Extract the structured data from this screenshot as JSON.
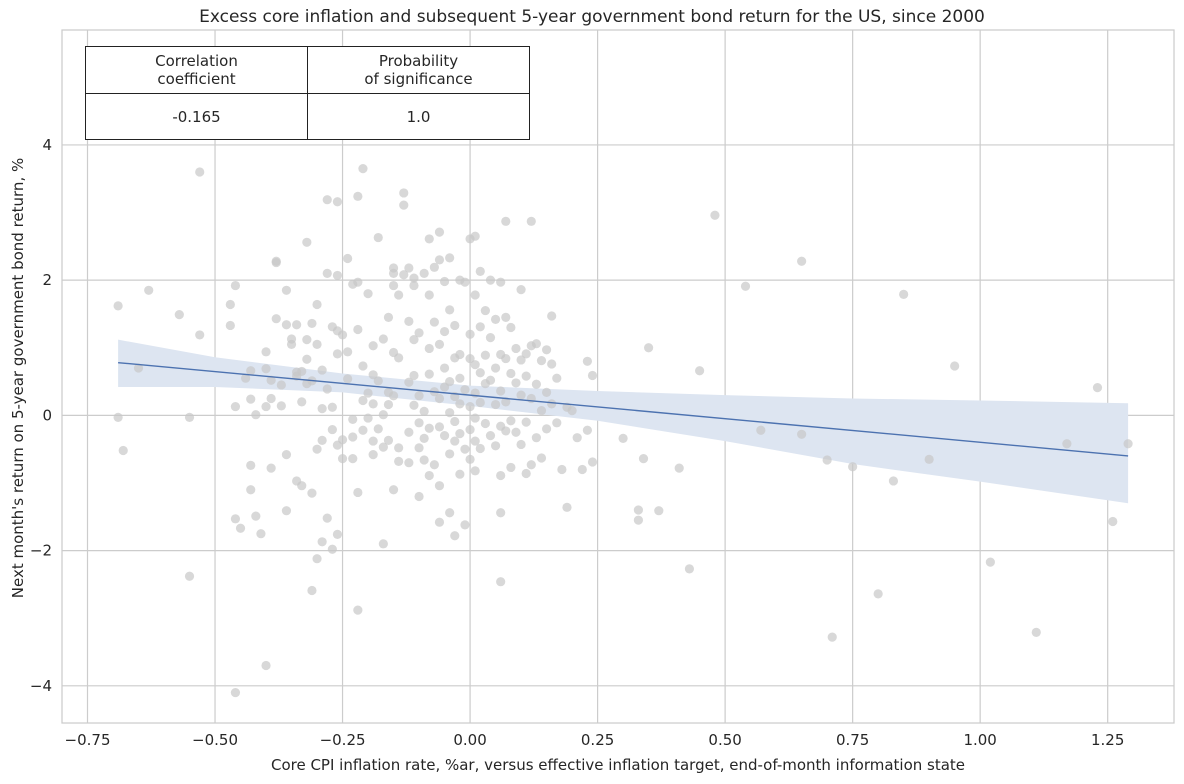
{
  "chart_data": {
    "type": "scatter",
    "title": "Excess core inflation and subsequent 5-year government bond return for the US, since 2000",
    "xlabel": "Core CPI inflation rate, %ar, versus effective inflation target, end-of-month information state",
    "ylabel": "Next month's return on 5-year government bond return, %",
    "xlim": [
      -0.8,
      1.38
    ],
    "ylim": [
      -4.55,
      5.7
    ],
    "xticks": [
      -0.75,
      -0.5,
      -0.25,
      0.0,
      0.25,
      0.5,
      0.75,
      1.0,
      1.25
    ],
    "xtick_labels": [
      "−0.75",
      "−0.50",
      "−0.25",
      "0.00",
      "0.25",
      "0.50",
      "0.75",
      "1.00",
      "1.25"
    ],
    "yticks": [
      -4,
      -2,
      0,
      2,
      4
    ],
    "ytick_labels": [
      "−4",
      "−2",
      "0",
      "2",
      "4"
    ],
    "grid": true,
    "regression_line": {
      "x": [
        -0.69,
        1.29
      ],
      "y": [
        0.78,
        -0.6
      ]
    },
    "confidence_band": {
      "x": [
        -0.69,
        -0.5,
        -0.25,
        0.0,
        0.25,
        0.5,
        0.75,
        1.0,
        1.29
      ],
      "upper": [
        1.12,
        0.86,
        0.62,
        0.44,
        0.36,
        0.3,
        0.25,
        0.22,
        0.18
      ],
      "lower": [
        0.42,
        0.42,
        0.34,
        0.14,
        -0.08,
        -0.38,
        -0.72,
        -0.98,
        -1.3
      ]
    },
    "points": [
      [
        -0.69,
        1.62
      ],
      [
        -0.69,
        -0.03
      ],
      [
        -0.68,
        -0.52
      ],
      [
        -0.65,
        0.7
      ],
      [
        -0.63,
        1.85
      ],
      [
        -0.57,
        1.49
      ],
      [
        -0.55,
        -0.03
      ],
      [
        -0.55,
        -2.38
      ],
      [
        -0.53,
        3.6
      ],
      [
        -0.53,
        1.19
      ],
      [
        -0.47,
        1.64
      ],
      [
        -0.47,
        1.33
      ],
      [
        -0.46,
        -1.53
      ],
      [
        -0.46,
        0.13
      ],
      [
        -0.46,
        1.92
      ],
      [
        -0.46,
        -4.1
      ],
      [
        -0.45,
        -1.67
      ],
      [
        -0.44,
        0.55
      ],
      [
        -0.43,
        0.66
      ],
      [
        -0.43,
        -0.74
      ],
      [
        -0.43,
        -1.1
      ],
      [
        -0.43,
        0.24
      ],
      [
        -0.42,
        0.01
      ],
      [
        -0.42,
        -1.49
      ],
      [
        -0.41,
        -1.75
      ],
      [
        -0.4,
        -3.7
      ],
      [
        -0.4,
        0.69
      ],
      [
        -0.4,
        0.13
      ],
      [
        -0.4,
        0.94
      ],
      [
        -0.39,
        -0.78
      ],
      [
        -0.39,
        0.52
      ],
      [
        -0.39,
        0.25
      ],
      [
        -0.38,
        2.28
      ],
      [
        -0.38,
        2.26
      ],
      [
        -0.38,
        1.43
      ],
      [
        -0.37,
        0.45
      ],
      [
        -0.37,
        0.14
      ],
      [
        -0.36,
        1.34
      ],
      [
        -0.36,
        1.85
      ],
      [
        -0.36,
        -0.58
      ],
      [
        -0.36,
        -1.41
      ],
      [
        -0.35,
        1.05
      ],
      [
        -0.35,
        1.13
      ],
      [
        -0.34,
        0.64
      ],
      [
        -0.34,
        -0.97
      ],
      [
        -0.34,
        1.34
      ],
      [
        -0.34,
        0.58
      ],
      [
        -0.33,
        -1.04
      ],
      [
        -0.33,
        0.65
      ],
      [
        -0.33,
        0.2
      ],
      [
        -0.32,
        2.56
      ],
      [
        -0.32,
        1.12
      ],
      [
        -0.32,
        0.47
      ],
      [
        -0.32,
        0.83
      ],
      [
        -0.31,
        1.36
      ],
      [
        -0.31,
        0.51
      ],
      [
        -0.31,
        -1.15
      ],
      [
        -0.31,
        -2.59
      ],
      [
        -0.3,
        -0.5
      ],
      [
        -0.3,
        -2.12
      ],
      [
        -0.3,
        1.64
      ],
      [
        -0.3,
        1.05
      ],
      [
        -0.29,
        0.67
      ],
      [
        -0.29,
        0.1
      ],
      [
        -0.29,
        -0.37
      ],
      [
        -0.29,
        -1.87
      ],
      [
        -0.28,
        3.19
      ],
      [
        -0.28,
        2.1
      ],
      [
        -0.28,
        0.39
      ],
      [
        -0.28,
        -1.52
      ],
      [
        -0.27,
        1.31
      ],
      [
        -0.27,
        0.12
      ],
      [
        -0.27,
        -0.21
      ],
      [
        -0.27,
        -1.98
      ],
      [
        -0.26,
        3.16
      ],
      [
        -0.26,
        2.07
      ],
      [
        -0.26,
        1.25
      ],
      [
        -0.26,
        0.91
      ],
      [
        -0.26,
        -0.44
      ],
      [
        -0.26,
        -1.76
      ],
      [
        -0.25,
        1.19
      ],
      [
        -0.25,
        -0.36
      ],
      [
        -0.25,
        -0.64
      ],
      [
        -0.24,
        2.32
      ],
      [
        -0.24,
        0.94
      ],
      [
        -0.24,
        0.54
      ],
      [
        -0.23,
        1.94
      ],
      [
        -0.23,
        -0.06
      ],
      [
        -0.23,
        -0.32
      ],
      [
        -0.23,
        -0.64
      ],
      [
        -0.22,
        3.24
      ],
      [
        -0.22,
        1.97
      ],
      [
        -0.22,
        1.27
      ],
      [
        -0.22,
        -1.14
      ],
      [
        -0.22,
        -2.88
      ],
      [
        -0.21,
        3.65
      ],
      [
        -0.21,
        0.73
      ],
      [
        -0.21,
        0.22
      ],
      [
        -0.21,
        -0.22
      ],
      [
        -0.2,
        1.8
      ],
      [
        -0.2,
        0.33
      ],
      [
        -0.2,
        -0.04
      ],
      [
        -0.19,
        1.03
      ],
      [
        -0.19,
        0.6
      ],
      [
        -0.19,
        0.17
      ],
      [
        -0.19,
        -0.38
      ],
      [
        -0.19,
        -0.58
      ],
      [
        -0.18,
        2.63
      ],
      [
        -0.18,
        0.51
      ],
      [
        -0.18,
        -0.2
      ],
      [
        -0.17,
        1.13
      ],
      [
        -0.17,
        0.01
      ],
      [
        -0.17,
        -0.47
      ],
      [
        -0.17,
        -1.9
      ],
      [
        -0.16,
        1.45
      ],
      [
        -0.16,
        0.34
      ],
      [
        -0.16,
        0.16
      ],
      [
        -0.16,
        -0.37
      ],
      [
        -0.15,
        2.18
      ],
      [
        -0.15,
        2.1
      ],
      [
        -0.15,
        1.92
      ],
      [
        -0.15,
        0.93
      ],
      [
        -0.15,
        0.29
      ],
      [
        -0.15,
        -1.1
      ],
      [
        -0.14,
        1.78
      ],
      [
        -0.14,
        0.85
      ],
      [
        -0.14,
        -0.48
      ],
      [
        -0.14,
        -0.68
      ],
      [
        -0.13,
        3.29
      ],
      [
        -0.13,
        3.11
      ],
      [
        -0.13,
        2.08
      ],
      [
        -0.12,
        2.18
      ],
      [
        -0.12,
        1.39
      ],
      [
        -0.12,
        0.49
      ],
      [
        -0.12,
        -0.25
      ],
      [
        -0.12,
        -0.7
      ],
      [
        -0.11,
        2.03
      ],
      [
        -0.11,
        1.92
      ],
      [
        -0.11,
        1.12
      ],
      [
        -0.11,
        0.59
      ],
      [
        -0.11,
        0.15
      ],
      [
        -0.1,
        1.22
      ],
      [
        -0.1,
        0.29
      ],
      [
        -0.1,
        -0.11
      ],
      [
        -0.1,
        -0.48
      ],
      [
        -0.1,
        -1.2
      ],
      [
        -0.09,
        2.1
      ],
      [
        -0.09,
        0.06
      ],
      [
        -0.09,
        -0.34
      ],
      [
        -0.09,
        -0.66
      ],
      [
        -0.08,
        2.61
      ],
      [
        -0.08,
        1.78
      ],
      [
        -0.08,
        0.99
      ],
      [
        -0.08,
        0.61
      ],
      [
        -0.08,
        -0.19
      ],
      [
        -0.08,
        -0.89
      ],
      [
        -0.07,
        2.19
      ],
      [
        -0.07,
        1.38
      ],
      [
        -0.07,
        0.35
      ],
      [
        -0.07,
        -0.73
      ],
      [
        -0.06,
        2.71
      ],
      [
        -0.06,
        2.3
      ],
      [
        -0.06,
        1.05
      ],
      [
        -0.06,
        0.25
      ],
      [
        -0.06,
        -0.17
      ],
      [
        -0.06,
        -1.04
      ],
      [
        -0.06,
        -1.58
      ],
      [
        -0.05,
        1.98
      ],
      [
        -0.05,
        1.24
      ],
      [
        -0.05,
        0.7
      ],
      [
        -0.05,
        0.42
      ],
      [
        -0.05,
        -0.3
      ],
      [
        -0.04,
        2.33
      ],
      [
        -0.04,
        1.56
      ],
      [
        -0.04,
        0.5
      ],
      [
        -0.04,
        0.04
      ],
      [
        -0.04,
        -0.57
      ],
      [
        -0.04,
        -1.44
      ],
      [
        -0.03,
        1.33
      ],
      [
        -0.03,
        0.85
      ],
      [
        -0.03,
        0.28
      ],
      [
        -0.03,
        -0.09
      ],
      [
        -0.03,
        -0.38
      ],
      [
        -0.03,
        -1.78
      ],
      [
        -0.02,
        2.0
      ],
      [
        -0.02,
        0.9
      ],
      [
        -0.02,
        0.55
      ],
      [
        -0.02,
        0.17
      ],
      [
        -0.02,
        -0.27
      ],
      [
        -0.02,
        -0.87
      ],
      [
        -0.01,
        1.97
      ],
      [
        -0.01,
        0.38
      ],
      [
        -0.01,
        -0.5
      ],
      [
        -0.01,
        -1.62
      ],
      [
        0.0,
        2.61
      ],
      [
        0.0,
        1.2
      ],
      [
        0.0,
        0.84
      ],
      [
        0.0,
        0.13
      ],
      [
        0.0,
        -0.21
      ],
      [
        0.0,
        -0.65
      ],
      [
        0.01,
        2.65
      ],
      [
        0.01,
        1.78
      ],
      [
        0.01,
        0.75
      ],
      [
        0.01,
        0.33
      ],
      [
        0.01,
        -0.04
      ],
      [
        0.01,
        -0.38
      ],
      [
        0.01,
        -0.82
      ],
      [
        0.02,
        2.13
      ],
      [
        0.02,
        1.31
      ],
      [
        0.02,
        0.63
      ],
      [
        0.02,
        0.19
      ],
      [
        0.02,
        -0.49
      ],
      [
        0.03,
        1.55
      ],
      [
        0.03,
        0.89
      ],
      [
        0.03,
        0.47
      ],
      [
        0.03,
        -0.12
      ],
      [
        0.04,
        2.0
      ],
      [
        0.04,
        1.15
      ],
      [
        0.04,
        0.52
      ],
      [
        0.04,
        -0.3
      ],
      [
        0.05,
        1.42
      ],
      [
        0.05,
        0.7
      ],
      [
        0.05,
        0.16
      ],
      [
        0.05,
        -0.45
      ],
      [
        0.06,
        1.97
      ],
      [
        0.06,
        0.9
      ],
      [
        0.06,
        0.36
      ],
      [
        0.06,
        -0.16
      ],
      [
        0.06,
        -0.89
      ],
      [
        0.06,
        -1.44
      ],
      [
        0.06,
        -2.46
      ],
      [
        0.07,
        2.87
      ],
      [
        0.07,
        1.45
      ],
      [
        0.07,
        0.84
      ],
      [
        0.07,
        0.2
      ],
      [
        0.07,
        -0.23
      ],
      [
        0.08,
        1.3
      ],
      [
        0.08,
        0.62
      ],
      [
        0.08,
        -0.08
      ],
      [
        0.08,
        -0.77
      ],
      [
        0.09,
        0.99
      ],
      [
        0.09,
        0.48
      ],
      [
        0.09,
        -0.25
      ],
      [
        0.1,
        1.86
      ],
      [
        0.1,
        0.82
      ],
      [
        0.1,
        0.3
      ],
      [
        0.1,
        -0.43
      ],
      [
        0.11,
        0.91
      ],
      [
        0.11,
        0.58
      ],
      [
        0.11,
        -0.1
      ],
      [
        0.11,
        -0.86
      ],
      [
        0.12,
        2.87
      ],
      [
        0.12,
        1.03
      ],
      [
        0.12,
        0.25
      ],
      [
        0.12,
        -0.73
      ],
      [
        0.13,
        1.06
      ],
      [
        0.13,
        0.46
      ],
      [
        0.13,
        -0.33
      ],
      [
        0.14,
        0.81
      ],
      [
        0.14,
        0.07
      ],
      [
        0.14,
        -0.63
      ],
      [
        0.15,
        0.97
      ],
      [
        0.15,
        0.34
      ],
      [
        0.15,
        -0.2
      ],
      [
        0.16,
        1.47
      ],
      [
        0.16,
        0.76
      ],
      [
        0.16,
        0.17
      ],
      [
        0.17,
        0.55
      ],
      [
        0.17,
        -0.11
      ],
      [
        0.18,
        -0.8
      ],
      [
        0.19,
        0.12
      ],
      [
        0.19,
        -1.36
      ],
      [
        0.2,
        0.07
      ],
      [
        0.21,
        -0.33
      ],
      [
        0.22,
        -0.8
      ],
      [
        0.23,
        0.8
      ],
      [
        0.23,
        -0.22
      ],
      [
        0.24,
        0.59
      ],
      [
        0.24,
        -0.69
      ],
      [
        0.3,
        -0.34
      ],
      [
        0.33,
        -1.4
      ],
      [
        0.33,
        -1.55
      ],
      [
        0.34,
        -0.64
      ],
      [
        0.35,
        1.0
      ],
      [
        0.41,
        -0.78
      ],
      [
        0.43,
        -2.27
      ],
      [
        0.45,
        0.66
      ],
      [
        0.48,
        2.96
      ],
      [
        0.37,
        -1.41
      ],
      [
        0.54,
        1.91
      ],
      [
        0.57,
        -0.22
      ],
      [
        0.65,
        2.28
      ],
      [
        0.65,
        -0.28
      ],
      [
        0.7,
        -0.66
      ],
      [
        0.71,
        -3.28
      ],
      [
        0.75,
        -0.76
      ],
      [
        0.8,
        -2.64
      ],
      [
        0.83,
        -0.97
      ],
      [
        0.85,
        1.79
      ],
      [
        0.9,
        -0.65
      ],
      [
        0.95,
        0.73
      ],
      [
        1.02,
        -2.17
      ],
      [
        1.11,
        -3.21
      ],
      [
        1.17,
        -0.42
      ],
      [
        1.23,
        0.41
      ],
      [
        1.26,
        -1.57
      ],
      [
        1.29,
        -0.42
      ]
    ]
  },
  "stats_table": {
    "headers": [
      "Correlation\ncoefficient",
      "Probability\nof significance"
    ],
    "values": [
      "-0.165",
      "1.0"
    ]
  },
  "colors": {
    "background": "#ffffff",
    "grid": "#cccccc",
    "axis": "#cccccc",
    "points": "#c8c8c8",
    "line": "#4c72b0",
    "band": "#dde5f1",
    "table_border": "#222222",
    "text": "#262626"
  }
}
